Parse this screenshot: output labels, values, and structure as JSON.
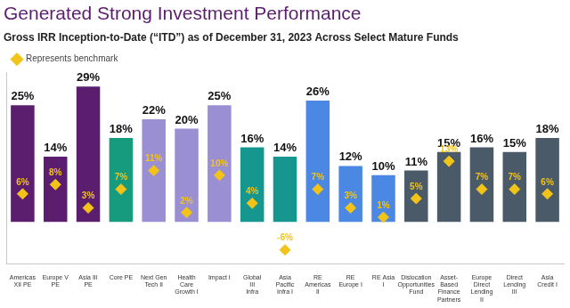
{
  "chart_data": {
    "type": "bar",
    "title": "Generated Strong Investment Performance",
    "subtitle": "Gross IRR Inception-to-Date (“ITD”) as of December 31, 2023 Across Select Mature Funds",
    "categories": [
      "Americas XII PE",
      "Europe V PE",
      "Asia III PE",
      "Core PE",
      "Next Gen Tech II",
      "Health Care Growth I",
      "Impact I",
      "Global III Infra",
      "Asia Pacific Infra I",
      "RE Americas II",
      "RE Europe I",
      "RE Asia I",
      "Dislocation Opportunities Fund",
      "Asset-Based Finance Partners",
      "Europe Direct Lending II",
      "Direct Lending III",
      "Asia Credit I"
    ],
    "series": [
      {
        "type": "bar",
        "colors": [
          "#5b1e6e",
          "#5b1e6e",
          "#5b1e6e",
          "#169b7f",
          "#9b8fd3",
          "#9b8fd3",
          "#9b8fd3",
          "#15978f",
          "#15978f",
          "#4a88e3",
          "#4a88e3",
          "#4a88e3",
          "#4b5a68",
          "#4b5a68",
          "#4b5a68",
          "#4b5a68",
          "#4b5a68"
        ],
        "values": [
          25,
          14,
          29,
          18,
          22,
          20,
          25,
          16,
          14,
          26,
          12,
          10,
          11,
          15,
          16,
          15,
          18
        ],
        "value_labels": [
          "25%",
          "14%",
          "29%",
          "18%",
          "22%",
          "20%",
          "25%",
          "16%",
          "14%",
          "26%",
          "12%",
          "10%",
          "11%",
          "15%",
          "16%",
          "15%",
          "18%"
        ]
      },
      {
        "name": "Represents benchmark",
        "type": "line",
        "line_style": "none",
        "marker": "diamond",
        "color": "#f2c318",
        "values": [
          6,
          8,
          3,
          7,
          11,
          2,
          10,
          4,
          -6,
          7,
          3,
          1,
          5,
          13,
          7,
          7,
          6
        ],
        "value_labels": [
          "6%",
          "8%",
          "3%",
          "7%",
          "11%",
          "2%",
          "10%",
          "4%",
          "-6%",
          "7%",
          "3%",
          "1%",
          "5%",
          "13%",
          "7%",
          "7%",
          "6%"
        ]
      }
    ],
    "ylim": [
      -9,
      32
    ],
    "grid": false,
    "legend": "top-left",
    "data_labels": true,
    "tick_labels": "x"
  }
}
